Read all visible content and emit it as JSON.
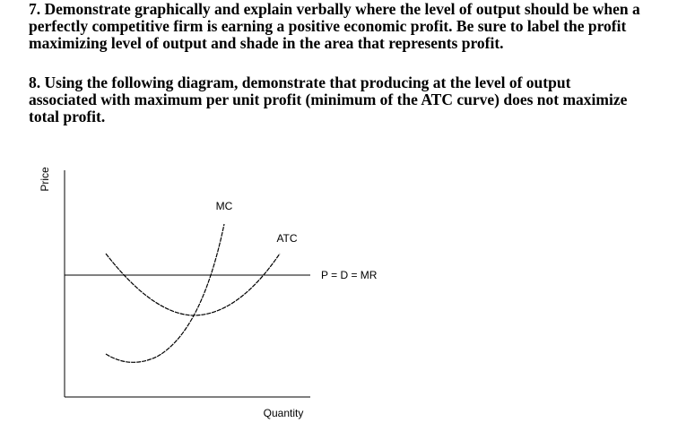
{
  "questions": [
    {
      "lines": [
        "7. Demonstrate graphically and explain verbally where the level of output should be when a",
        "perfectly competitive firm is earning a positive economic profit. Be sure to label the profit",
        "maximizing level of output and shade in the area that represents profit."
      ]
    },
    {
      "lines": [
        "8. Using the following diagram, demonstrate that producing at the level of output",
        "associated with maximum per unit profit (minimum of the ATC curve) does not maximize",
        "total profit."
      ]
    }
  ],
  "diagram": {
    "y_axis_label": "Price",
    "x_axis_label": "Quantity",
    "mc_label": "MC",
    "atc_label": "ATC",
    "price_line_label": "P = D = MR"
  }
}
